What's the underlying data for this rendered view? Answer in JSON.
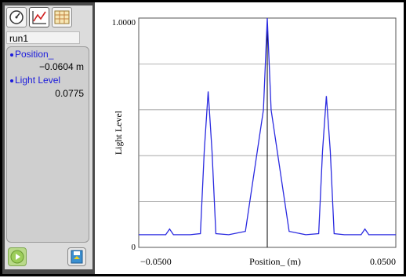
{
  "tabs": [
    {
      "icon": "meter-icon"
    },
    {
      "icon": "graph-icon"
    },
    {
      "icon": "table-icon"
    }
  ],
  "run": {
    "label": "run1"
  },
  "readouts": [
    {
      "label": "Position_",
      "value": "−0.0604 m"
    },
    {
      "label": "Light Level",
      "value": "0.0775"
    }
  ],
  "bottom": {
    "play_icon": "play-icon",
    "save_icon": "save-icon"
  },
  "colors": {
    "trace": "#2a2ae0",
    "accent": "#1a1adc"
  },
  "chart_data": {
    "type": "line",
    "xlabel": "Position_ (m)",
    "ylabel": "Light Level",
    "xlim": [
      -0.05,
      0.05
    ],
    "ylim": [
      0,
      1.0
    ],
    "x_tick_labels": [
      "−0.0500",
      "0.0500"
    ],
    "y_tick_labels": [
      "0",
      "1.0000"
    ],
    "cursor_x": 0.0,
    "grid": true,
    "series": [
      {
        "x": [
          -0.05,
          -0.041,
          -0.0395,
          -0.038,
          -0.0365,
          -0.035,
          -0.03,
          -0.026,
          -0.0245,
          -0.023,
          -0.0215,
          -0.02,
          -0.015,
          -0.0085,
          -0.0015,
          0.0,
          0.0015,
          0.0085,
          0.015,
          0.02,
          0.0215,
          0.023,
          0.0245,
          0.026,
          0.03,
          0.035,
          0.0365,
          0.038,
          0.0395,
          0.041,
          0.05
        ],
        "y": [
          0.055,
          0.055,
          0.055,
          0.08,
          0.055,
          0.055,
          0.055,
          0.06,
          0.42,
          0.68,
          0.42,
          0.06,
          0.055,
          0.07,
          0.6,
          1.0,
          0.6,
          0.07,
          0.055,
          0.06,
          0.42,
          0.66,
          0.42,
          0.06,
          0.055,
          0.055,
          0.055,
          0.08,
          0.055,
          0.055,
          0.055
        ]
      }
    ]
  }
}
